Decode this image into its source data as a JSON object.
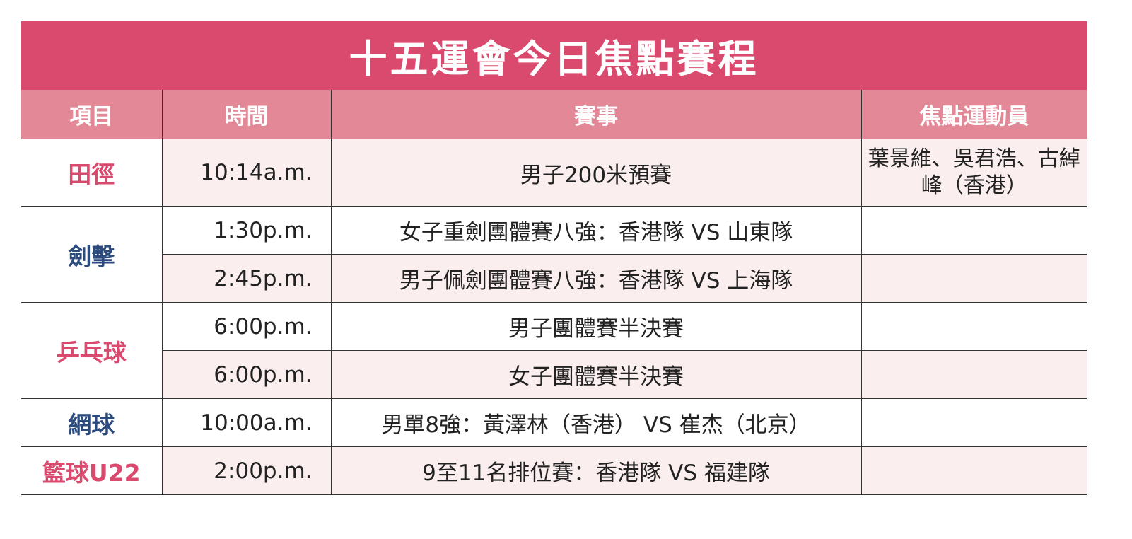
{
  "title": "十五運會今日焦點賽程",
  "colors": {
    "title_bg": "#d94a6e",
    "header_bg": "#e38896",
    "row_pink": "#fbeeef",
    "sport_pink": "#d94a6e",
    "sport_navy": "#2c4a7c"
  },
  "headers": [
    "項目",
    "時間",
    "賽事",
    "焦點運動員"
  ],
  "sports": [
    {
      "name": "田徑",
      "color": "#d94a6e"
    },
    {
      "name": "劍擊",
      "color": "#2c4a7c"
    },
    {
      "name": "乒乓球",
      "color": "#d94a6e"
    },
    {
      "name": "網球",
      "color": "#2c4a7c"
    },
    {
      "name": "籃球U22",
      "color": "#d94a6e"
    }
  ],
  "rows": [
    {
      "time": "10:14a.m.",
      "event": "男子200米預賽",
      "athletes": "葉景維、吳君浩、古綽峰（香港）"
    },
    {
      "time": "1:30p.m.",
      "event": "女子重劍團體賽八強：香港隊 VS 山東隊",
      "athletes": ""
    },
    {
      "time": "2:45p.m.",
      "event": "男子佩劍團體賽八強：香港隊 VS 上海隊",
      "athletes": ""
    },
    {
      "time": "6:00p.m.",
      "event": "男子團體賽半決賽",
      "athletes": ""
    },
    {
      "time": "6:00p.m.",
      "event": "女子團體賽半決賽",
      "athletes": ""
    },
    {
      "time": "10:00a.m.",
      "event": "男單8強：黃澤林（香港） VS 崔杰（北京）",
      "athletes": ""
    },
    {
      "time": "2:00p.m.",
      "event": "9至11名排位賽：香港隊 VS 福建隊",
      "athletes": ""
    }
  ]
}
